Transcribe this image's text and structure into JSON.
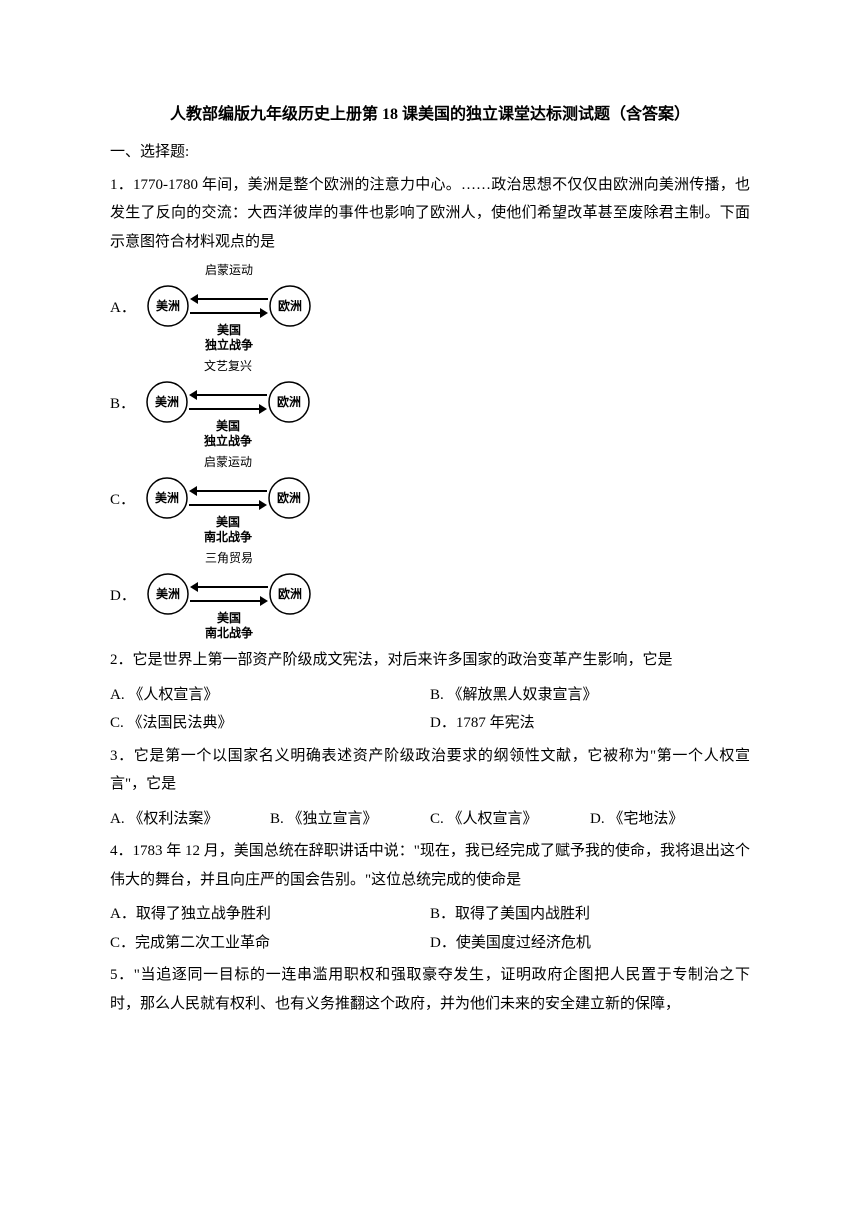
{
  "title": "人教部编版九年级历史上册第 18 课美国的独立课堂达标测试题（含答案）",
  "section1": "一、选择题:",
  "q1": {
    "stem": "1．1770-1780 年间，美洲是整个欧洲的注意力中心。……政治思想不仅仅由欧洲向美洲传播，也发生了反向的交流：大西洋彼岸的事件也影响了欧洲人，使他们希望改革甚至废除君主制。下面示意图符合材料观点的是",
    "options": {
      "A": {
        "top": "启蒙运动",
        "bottom": "美国",
        "bottom2": "独立战争",
        "left": "美洲",
        "right": "欧洲"
      },
      "B": {
        "top": "文艺复兴",
        "bottom": "美国",
        "bottom2": "独立战争",
        "left": "美洲",
        "right": "欧洲"
      },
      "C": {
        "top": "启蒙运动",
        "bottom": "美国",
        "bottom2": "南北战争",
        "left": "美洲",
        "right": "欧洲"
      },
      "D": {
        "top": "三角贸易",
        "bottom": "美国",
        "bottom2": "南北战争",
        "left": "美洲",
        "right": "欧洲"
      }
    },
    "labels": {
      "A": "A．",
      "B": "B．",
      "C": "C．",
      "D": "D．"
    },
    "diagram_style": {
      "circle_stroke": "#000000",
      "circle_fill": "#ffffff",
      "circle_r": 20,
      "text_color": "#000000",
      "arrow_color": "#000000",
      "width": 170,
      "height": 92,
      "font_size": 12,
      "label_font_size": 12
    }
  },
  "q2": {
    "stem": "2．它是世界上第一部资产阶级成文宪法，对后来许多国家的政治变革产生影响，它是",
    "A": "A. 《人权宣言》",
    "B": "B. 《解放黑人奴隶宣言》",
    "C": "C. 《法国民法典》",
    "D": "D．1787 年宪法"
  },
  "q3": {
    "stem": "3．它是第一个以国家名义明确表述资产阶级政治要求的纲领性文献，它被称为\"第一个人权宣言\"，它是",
    "A": "A. 《权利法案》",
    "B": "B. 《独立宣言》",
    "C": "C. 《人权宣言》",
    "D": "D. 《宅地法》"
  },
  "q4": {
    "stem": "4．1783 年 12 月，美国总统在辞职讲话中说：\"现在，我已经完成了赋予我的使命，我将退出这个伟大的舞台，并且向庄严的国会告别。\"这位总统完成的使命是",
    "A": "A．取得了独立战争胜利",
    "B": "B．取得了美国内战胜利",
    "C": "C．完成第二次工业革命",
    "D": "D．使美国度过经济危机"
  },
  "q5": {
    "stem": "5．\"当追逐同一目标的一连串滥用职权和强取豪夺发生，证明政府企图把人民置于专制治之下时，那么人民就有权利、也有义务推翻这个政府，并为他们未来的安全建立新的保障，"
  }
}
